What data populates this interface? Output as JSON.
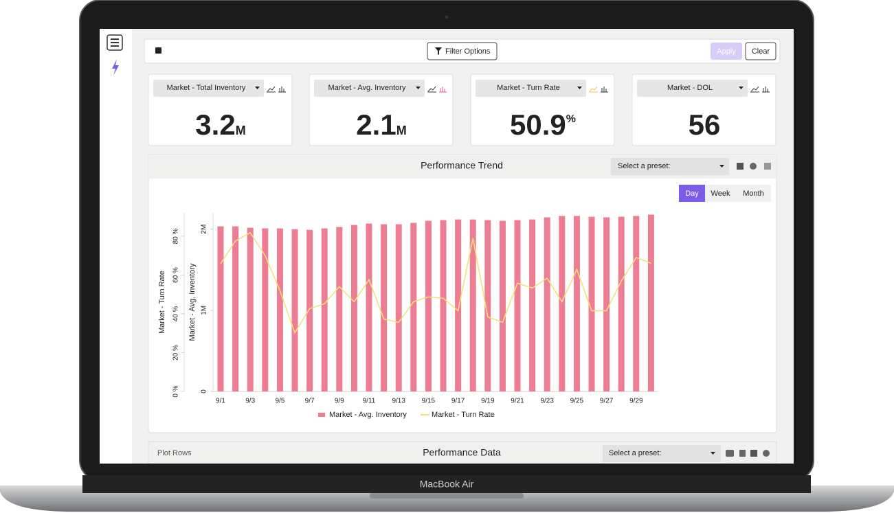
{
  "toolbar": {
    "filter_button": "Filter Options",
    "apply_button": "Apply",
    "clear_button": "Clear"
  },
  "kpis": [
    {
      "selector": "Market - Total Inventory",
      "value": "3.2",
      "unit": "M"
    },
    {
      "selector": "Market - Avg. Inventory",
      "value": "2.1",
      "unit": "M"
    },
    {
      "selector": "Market - Turn Rate",
      "value": "50.9",
      "unit": "%"
    },
    {
      "selector": "Market - DOL",
      "value": "56"
    }
  ],
  "trend_panel": {
    "preset_select": "Select a preset:",
    "range_buttons": [
      "Day",
      "Week",
      "Month"
    ]
  },
  "chart_data": {
    "type": "combo",
    "title": "Performance Trend",
    "categories": [
      "9/1",
      null,
      "9/3",
      null,
      "9/5",
      null,
      "9/7",
      null,
      "9/9",
      null,
      "9/11",
      null,
      "9/13",
      null,
      "9/15",
      null,
      "9/17",
      null,
      "9/19",
      null,
      "9/21",
      null,
      "9/23",
      null,
      "9/25",
      null,
      "9/27",
      null,
      "9/29",
      null
    ],
    "series": [
      {
        "name": "Market - Avg. Inventory",
        "type": "bar",
        "color": "#ec7d92",
        "values": [
          2034000,
          2034000,
          2017000,
          2009000,
          2009000,
          2000000,
          1991000,
          2009000,
          2026000,
          2051000,
          2068000,
          2060000,
          2060000,
          2077000,
          2102000,
          2111000,
          2119000,
          2119000,
          2111000,
          2102000,
          2111000,
          2119000,
          2145000,
          2162000,
          2162000,
          2153000,
          2145000,
          2153000,
          2162000,
          2179000
        ]
      },
      {
        "name": "Market - Turn Rate",
        "type": "line",
        "color": "#f3e27c",
        "axis": "y2",
        "values": [
          65.8,
          77.5,
          81.8,
          70.0,
          52.0,
          30.2,
          42.7,
          45.2,
          54.0,
          46.2,
          57.6,
          37.3,
          35.6,
          46.2,
          48.7,
          48.0,
          41.6,
          78.9,
          38.4,
          35.6,
          55.8,
          53.3,
          58.3,
          46.2,
          62.9,
          41.6,
          41.6,
          56.9,
          69.0,
          66.1
        ]
      }
    ],
    "y_label": "Market - Avg. Inventory",
    "y2_label": "Market - Turn Rate",
    "ylim": [
      0,
      2200000
    ],
    "yticks": [
      0,
      {
        "value": 1000000,
        "label": "1M"
      },
      {
        "value": 2000000,
        "label": "2M"
      }
    ],
    "y2lim": [
      0,
      92
    ],
    "y2ticks": [
      {
        "value": 0,
        "label": "0 %"
      },
      {
        "value": 20,
        "label": "20 %"
      },
      {
        "value": 40,
        "label": "40 %"
      },
      {
        "value": 60,
        "label": "60 %"
      },
      {
        "value": 80,
        "label": "80 %"
      }
    ],
    "legend": "bottom"
  },
  "data_panel": {
    "left_label": "Plot Rows",
    "title": "Performance Data",
    "preset_select": "Select a preset:"
  },
  "device": {
    "label": "MacBook Air"
  }
}
